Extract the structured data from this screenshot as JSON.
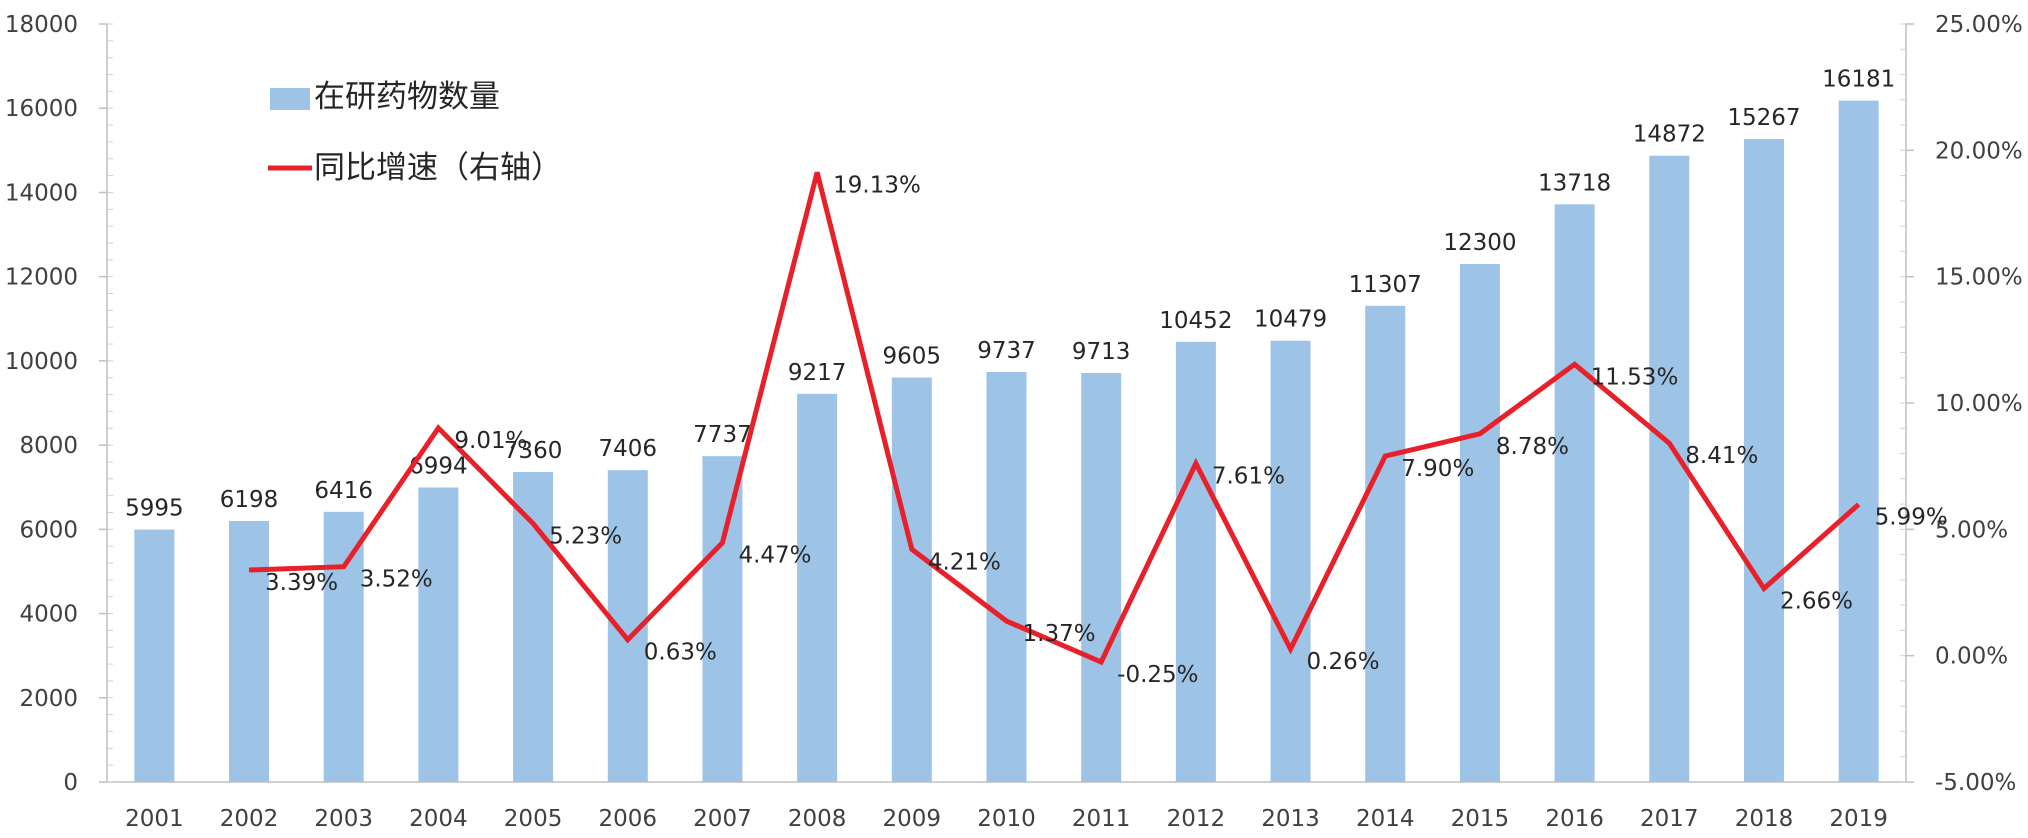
{
  "chart_data": {
    "type": "bar",
    "categories": [
      "2001",
      "2002",
      "2003",
      "2004",
      "2005",
      "2006",
      "2007",
      "2008",
      "2009",
      "2010",
      "2011",
      "2012",
      "2013",
      "2014",
      "2015",
      "2016",
      "2017",
      "2018",
      "2019"
    ],
    "series": [
      {
        "name": "在研药物数量",
        "type": "bar",
        "axis": "left",
        "color": "#9DC3E6",
        "values": [
          5995,
          6198,
          6416,
          6994,
          7360,
          7406,
          7737,
          9217,
          9605,
          9737,
          9713,
          10452,
          10479,
          11307,
          12300,
          13718,
          14872,
          15267,
          16181
        ],
        "labels": [
          "5995",
          "6198",
          "6416",
          "6994",
          "7360",
          "7406",
          "7737",
          "9217",
          "9605",
          "9737",
          "9713",
          "10452",
          "10479",
          "11307",
          "12300",
          "13718",
          "14872",
          "15267",
          "16181"
        ]
      },
      {
        "name": "同比增速（右轴）",
        "type": "line",
        "axis": "right",
        "color": "#E8202A",
        "values": [
          null,
          3.39,
          3.52,
          9.01,
          5.23,
          0.63,
          4.47,
          19.13,
          4.21,
          1.37,
          -0.25,
          7.61,
          0.26,
          7.9,
          8.78,
          11.53,
          8.41,
          2.66,
          5.99
        ],
        "labels": [
          "",
          "3.39%",
          "3.52%",
          "9.01%",
          "5.23%",
          "0.63%",
          "4.47%",
          "19.13%",
          "4.21%",
          "1.37%",
          "-0.25%",
          "7.61%",
          "0.26%",
          "7.90%",
          "8.78%",
          "11.53%",
          "8.41%",
          "2.66%",
          "5.99%"
        ]
      }
    ],
    "y_left": {
      "ylim": [
        0,
        18000
      ],
      "ticks": [
        "0",
        "2000",
        "4000",
        "6000",
        "8000",
        "10000",
        "12000",
        "14000",
        "16000",
        "18000"
      ]
    },
    "y_right": {
      "ylim": [
        -5,
        25
      ],
      "ticks": [
        "-5.00%",
        "0.00%",
        "5.00%",
        "10.00%",
        "15.00%",
        "20.00%",
        "25.00%"
      ]
    },
    "legend": {
      "position": "top-left"
    },
    "grid": false
  }
}
